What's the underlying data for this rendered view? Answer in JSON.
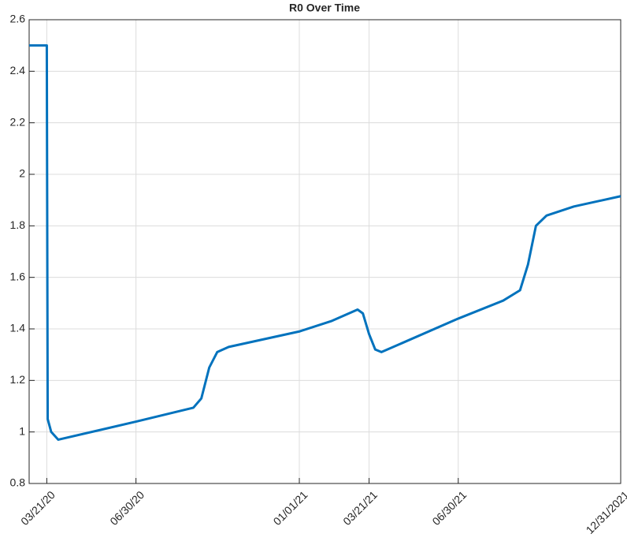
{
  "chart_data": {
    "type": "line",
    "title": "R0 Over Time",
    "x": [
      "2020-03-01",
      "2020-03-21",
      "2020-03-22",
      "2020-03-26",
      "2020-04-03",
      "2020-06-30",
      "2020-09-03",
      "2020-09-12",
      "2020-09-21",
      "2020-09-30",
      "2020-10-13",
      "2021-01-01",
      "2021-02-06",
      "2021-03-08",
      "2021-03-14",
      "2021-03-21",
      "2021-03-28",
      "2021-04-04",
      "2021-06-30",
      "2021-08-20",
      "2021-09-08",
      "2021-09-17",
      "2021-09-26",
      "2021-10-08",
      "2021-11-08",
      "2021-12-31"
    ],
    "values": [
      2.5,
      2.5,
      1.05,
      1.0,
      0.97,
      1.04,
      1.094,
      1.13,
      1.25,
      1.31,
      1.33,
      1.39,
      1.43,
      1.475,
      1.46,
      1.38,
      1.32,
      1.31,
      1.44,
      1.51,
      1.55,
      1.65,
      1.8,
      1.84,
      1.875,
      1.915
    ],
    "color": "#0072bd",
    "xlim": [
      "2020-03-01",
      "2021-12-31"
    ],
    "xticks": [
      {
        "value": "2020-03-21",
        "label": "03/21/20"
      },
      {
        "value": "2020-06-30",
        "label": "06/30/20"
      },
      {
        "value": "2021-01-01",
        "label": "01/01/21"
      },
      {
        "value": "2021-03-21",
        "label": "03/21/21"
      },
      {
        "value": "2021-06-30",
        "label": "06/30/21"
      },
      {
        "value": "2021-12-31",
        "label": "12/31/2021"
      }
    ],
    "ylim": [
      0.8,
      2.6
    ],
    "yticks": [
      0.8,
      1,
      1.2,
      1.4,
      1.6,
      1.8,
      2,
      2.2,
      2.4,
      2.6
    ],
    "grid": true
  }
}
